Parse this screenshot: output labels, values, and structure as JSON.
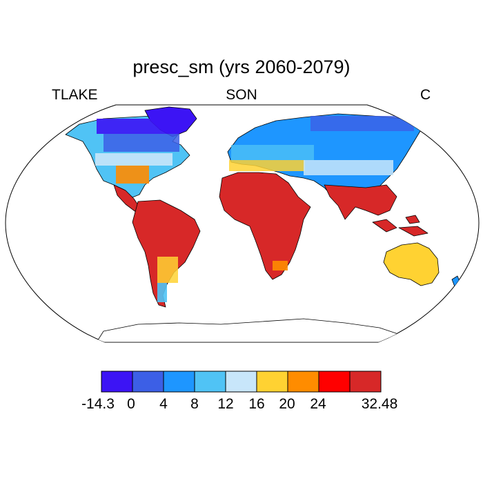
{
  "title": "presc_sm (yrs 2060-2079)",
  "left_label": "TLAKE",
  "center_label": "SON",
  "right_label": "C",
  "colorbar": {
    "colors": [
      "#3c14f5",
      "#3c5fe6",
      "#1e96ff",
      "#50c3f5",
      "#c8e6fa",
      "#ffd232",
      "#ff8c00",
      "#ff0000",
      "#d72828"
    ],
    "labels": [
      "-14.3",
      "0",
      "4",
      "8",
      "12",
      "16",
      "20",
      "24",
      "32.48"
    ]
  },
  "map": {
    "projection": "Robinson",
    "region_values": [
      {
        "region": "Greenland / Canadian Arctic",
        "band": 0
      },
      {
        "region": "Canada",
        "band": 1
      },
      {
        "region": "Northern USA",
        "band": 3
      },
      {
        "region": "Southeast USA",
        "band": 6
      },
      {
        "region": "Mexico / Central America",
        "band": 8
      },
      {
        "region": "South America",
        "band": 8
      },
      {
        "region": "Argentina",
        "band": 5
      },
      {
        "region": "Patagonia",
        "band": 3
      },
      {
        "region": "Europe / Northern Asia",
        "band": 2
      },
      {
        "region": "Siberia",
        "band": 1
      },
      {
        "region": "Mediterranean / Central Asia",
        "band": 4
      },
      {
        "region": "Africa",
        "band": 8
      },
      {
        "region": "India / Southeast Asia",
        "band": 8
      },
      {
        "region": "Australia",
        "band": 5
      }
    ]
  }
}
